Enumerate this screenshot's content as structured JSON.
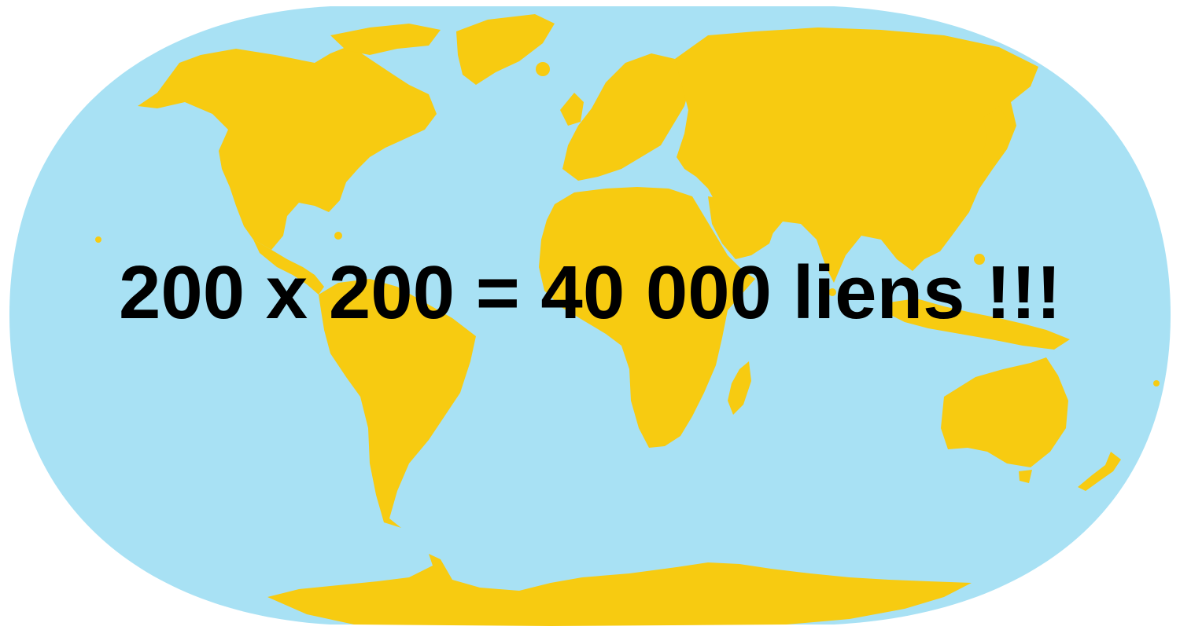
{
  "map": {
    "projection": "robinson",
    "ocean_color": "#a8e1f4",
    "land_color": "#f7cb11"
  },
  "headline": "200 x 200 = 40 000 liens !!!"
}
